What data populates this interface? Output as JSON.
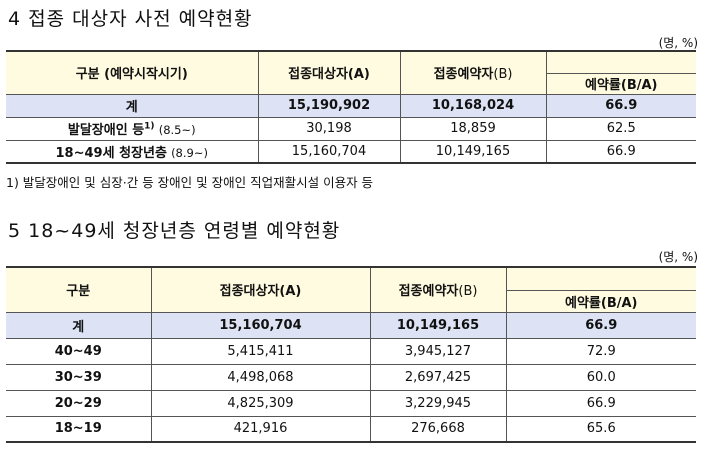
{
  "section4": {
    "title": "4 접종 대상자 사전 예약현황",
    "unit": "(명, %)",
    "headers": {
      "category": "구분 (예약시작시기)",
      "target": "접종대상자(A)",
      "reserved_main": "접종예약자",
      "reserved_suffix": "(B)",
      "rate": "예약률(B/A)"
    },
    "rows": [
      {
        "label": "계",
        "target": "15,190,902",
        "reserved": "10,168,024",
        "rate": "66.9"
      },
      {
        "label": "발달장애인 등",
        "sup": "1)",
        "sub": "(8.5~)",
        "target": "30,198",
        "reserved": "18,859",
        "rate": "62.5"
      },
      {
        "label": "18~49세 청장년층",
        "sub": "(8.9~)",
        "target": "15,160,704",
        "reserved": "10,149,165",
        "rate": "66.9"
      }
    ],
    "footnote": "1) 발달장애인 및 심장·간 등 장애인 및 장애인 직업재활시설 이용자 등"
  },
  "section5": {
    "title": "5 18~49세 청장년층 연령별 예약현황",
    "unit": "(명, %)",
    "headers": {
      "category": "구분",
      "target": "접종대상자(A)",
      "reserved_main": "접종예약자",
      "reserved_suffix": "(B)",
      "rate": "예약률(B/A)"
    },
    "rows": [
      {
        "label": "계",
        "target": "15,160,704",
        "reserved": "10,149,165",
        "rate": "66.9"
      },
      {
        "label": "40~49",
        "target": "5,415,411",
        "reserved": "3,945,127",
        "rate": "72.9"
      },
      {
        "label": "30~39",
        "target": "4,498,068",
        "reserved": "2,697,425",
        "rate": "60.0"
      },
      {
        "label": "20~29",
        "target": "4,825,309",
        "reserved": "3,229,945",
        "rate": "66.9"
      },
      {
        "label": "18~19",
        "target": "421,916",
        "reserved": "276,668",
        "rate": "65.6"
      }
    ]
  }
}
